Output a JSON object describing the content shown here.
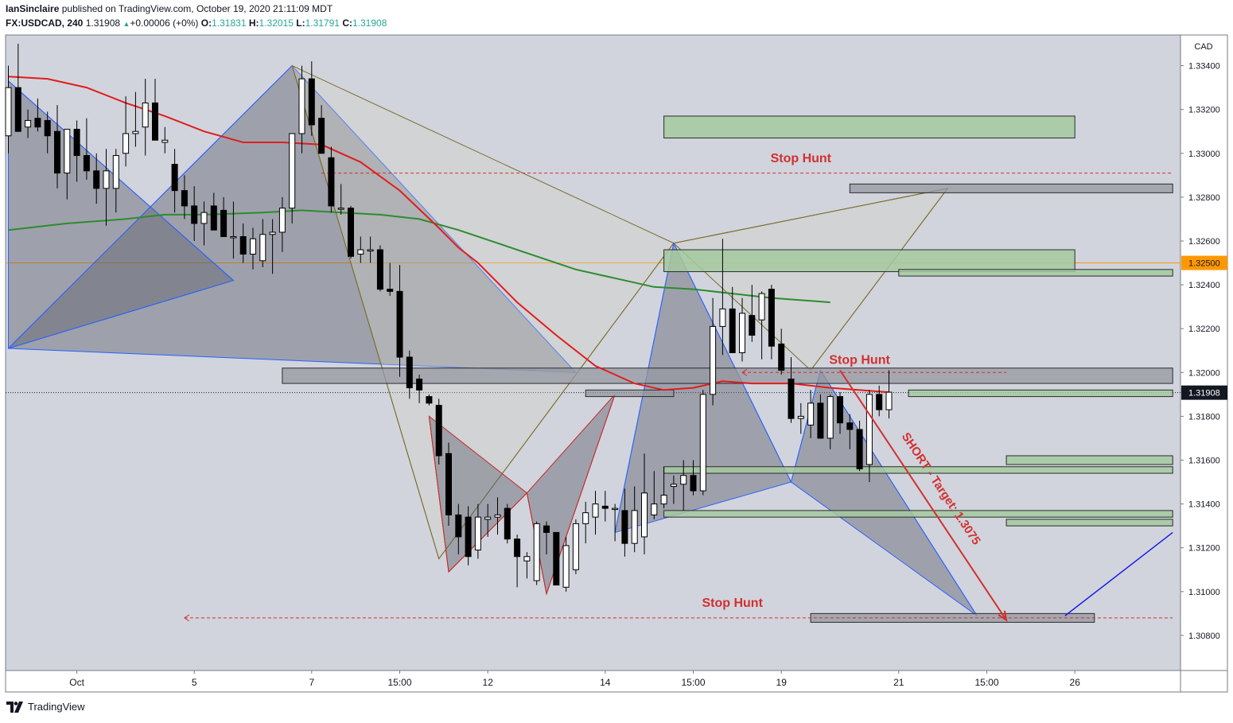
{
  "header": {
    "author": "IanSinclaire",
    "published_text": "published on TradingView.com, October 19, 2020 21:11:09 MDT",
    "symbol": "FX:USDCAD, 240",
    "last": "1.31908",
    "change": "+0.00006 (+0%)",
    "o_label": "O:",
    "o": "1.31831",
    "h_label": "H:",
    "h": "1.32015",
    "l_label": "L:",
    "l": "1.31791",
    "c_label": "C:",
    "c": "1.31908"
  },
  "footer": {
    "brand": "TradingView",
    "icon": "tradingview-logo-icon"
  },
  "colors": {
    "background": "#d1d4dc",
    "bullish_candle": "#ffffff",
    "bearish_candle": "#000000",
    "ma_fast": "#e11d1d",
    "ma_slow": "#2e8b2e",
    "annotation_red": "#d32f2f",
    "harmonic_fill": "#787b86",
    "zone_green": "#a5c9a0",
    "zone_gray": "#9598a1",
    "level_orange": "#ff9800",
    "projection_blue": "#1a1ae6"
  },
  "chart_data": {
    "type": "candlestick",
    "symbol": "USDCAD",
    "timeframe": "240",
    "currency_label": "CAD",
    "ylim": [
      1.3064,
      1.3354
    ],
    "y_ticks": [
      1.334,
      1.332,
      1.33,
      1.328,
      1.326,
      1.324,
      1.322,
      1.32,
      1.318,
      1.316,
      1.314,
      1.312,
      1.31,
      1.308
    ],
    "y_tick_labels": [
      "1.33400",
      "1.33200",
      "1.33000",
      "1.32800",
      "1.32600",
      "1.32400",
      "1.32200",
      "1.32000",
      "1.31800",
      "1.31600",
      "1.31400",
      "1.31200",
      "1.31000",
      "1.30800"
    ],
    "x_tick_labels": [
      {
        "label": "Oct",
        "bar": 7
      },
      {
        "label": "5",
        "bar": 19
      },
      {
        "label": "7",
        "bar": 31
      },
      {
        "label": "15:00",
        "bar": 40
      },
      {
        "label": "12",
        "bar": 49
      },
      {
        "label": "14",
        "bar": 61
      },
      {
        "label": "15:00",
        "bar": 70
      },
      {
        "label": "19",
        "bar": 79
      },
      {
        "label": "21",
        "bar": 91
      },
      {
        "label": "15:00",
        "bar": 100
      },
      {
        "label": "26",
        "bar": 109
      }
    ],
    "price_labels": [
      {
        "value": 1.325,
        "text": "1.32500",
        "style": "orange"
      },
      {
        "value": 1.31908,
        "text": "1.31908",
        "style": "black"
      }
    ],
    "candles": [
      {
        "o": 1.3308,
        "h": 1.334,
        "l": 1.33,
        "c": 1.333
      },
      {
        "o": 1.333,
        "h": 1.335,
        "l": 1.331,
        "c": 1.331
      },
      {
        "o": 1.3312,
        "h": 1.332,
        "l": 1.3307,
        "c": 1.3315
      },
      {
        "o": 1.3316,
        "h": 1.3325,
        "l": 1.331,
        "c": 1.3312
      },
      {
        "o": 1.3315,
        "h": 1.3319,
        "l": 1.33,
        "c": 1.3308
      },
      {
        "o": 1.331,
        "h": 1.3322,
        "l": 1.3284,
        "c": 1.3291
      },
      {
        "o": 1.3291,
        "h": 1.331,
        "l": 1.3279,
        "c": 1.3311
      },
      {
        "o": 1.3311,
        "h": 1.3315,
        "l": 1.3287,
        "c": 1.3299
      },
      {
        "o": 1.3299,
        "h": 1.3316,
        "l": 1.3288,
        "c": 1.3292
      },
      {
        "o": 1.3292,
        "h": 1.33,
        "l": 1.3277,
        "c": 1.3284
      },
      {
        "o": 1.3284,
        "h": 1.3302,
        "l": 1.3267,
        "c": 1.3292
      },
      {
        "o": 1.3284,
        "h": 1.3302,
        "l": 1.3273,
        "c": 1.3299
      },
      {
        "o": 1.33,
        "h": 1.3326,
        "l": 1.3294,
        "c": 1.3309
      },
      {
        "o": 1.3309,
        "h": 1.3328,
        "l": 1.3303,
        "c": 1.331
      },
      {
        "o": 1.3312,
        "h": 1.3334,
        "l": 1.3299,
        "c": 1.3323
      },
      {
        "o": 1.3323,
        "h": 1.3334,
        "l": 1.3306,
        "c": 1.3306
      },
      {
        "o": 1.3305,
        "h": 1.3312,
        "l": 1.33,
        "c": 1.3306
      },
      {
        "o": 1.3295,
        "h": 1.3302,
        "l": 1.3273,
        "c": 1.3283
      },
      {
        "o": 1.3283,
        "h": 1.329,
        "l": 1.327,
        "c": 1.3276
      },
      {
        "o": 1.3276,
        "h": 1.3285,
        "l": 1.326,
        "c": 1.3268
      },
      {
        "o": 1.3268,
        "h": 1.3278,
        "l": 1.3258,
        "c": 1.3273
      },
      {
        "o": 1.3276,
        "h": 1.3282,
        "l": 1.3265,
        "c": 1.3265
      },
      {
        "o": 1.3274,
        "h": 1.328,
        "l": 1.3262,
        "c": 1.3262
      },
      {
        "o": 1.3262,
        "h": 1.3278,
        "l": 1.3252,
        "c": 1.3262
      },
      {
        "o": 1.3262,
        "h": 1.3268,
        "l": 1.325,
        "c": 1.3254
      },
      {
        "o": 1.3254,
        "h": 1.3266,
        "l": 1.3247,
        "c": 1.3261
      },
      {
        "o": 1.3251,
        "h": 1.327,
        "l": 1.3248,
        "c": 1.3263
      },
      {
        "o": 1.3263,
        "h": 1.327,
        "l": 1.3245,
        "c": 1.3264
      },
      {
        "o": 1.3264,
        "h": 1.328,
        "l": 1.3255,
        "c": 1.3275
      },
      {
        "o": 1.3275,
        "h": 1.3308,
        "l": 1.3268,
        "c": 1.3309
      },
      {
        "o": 1.3309,
        "h": 1.334,
        "l": 1.33,
        "c": 1.3334
      },
      {
        "o": 1.3334,
        "h": 1.3342,
        "l": 1.3308,
        "c": 1.3313
      },
      {
        "o": 1.3316,
        "h": 1.3322,
        "l": 1.33,
        "c": 1.33
      },
      {
        "o": 1.3298,
        "h": 1.3303,
        "l": 1.3273,
        "c": 1.3276
      },
      {
        "o": 1.3275,
        "h": 1.3286,
        "l": 1.3272,
        "c": 1.3275
      },
      {
        "o": 1.3275,
        "h": 1.3276,
        "l": 1.3252,
        "c": 1.3253
      },
      {
        "o": 1.3254,
        "h": 1.3262,
        "l": 1.325,
        "c": 1.3256
      },
      {
        "o": 1.3256,
        "h": 1.3262,
        "l": 1.325,
        "c": 1.3256
      },
      {
        "o": 1.3256,
        "h": 1.3258,
        "l": 1.3237,
        "c": 1.3238
      },
      {
        "o": 1.3238,
        "h": 1.325,
        "l": 1.3235,
        "c": 1.3237
      },
      {
        "o": 1.3237,
        "h": 1.3249,
        "l": 1.3198,
        "c": 1.3207
      },
      {
        "o": 1.3207,
        "h": 1.321,
        "l": 1.3188,
        "c": 1.3193
      },
      {
        "o": 1.3197,
        "h": 1.3199,
        "l": 1.3186,
        "c": 1.3192
      },
      {
        "o": 1.3189,
        "h": 1.319,
        "l": 1.3185,
        "c": 1.3186
      },
      {
        "o": 1.3185,
        "h": 1.3188,
        "l": 1.3158,
        "c": 1.3162
      },
      {
        "o": 1.3163,
        "h": 1.3168,
        "l": 1.313,
        "c": 1.3135
      },
      {
        "o": 1.3135,
        "h": 1.314,
        "l": 1.3117,
        "c": 1.3125
      },
      {
        "o": 1.3134,
        "h": 1.3139,
        "l": 1.3112,
        "c": 1.3116
      },
      {
        "o": 1.3119,
        "h": 1.314,
        "l": 1.3115,
        "c": 1.3134
      },
      {
        "o": 1.3133,
        "h": 1.314,
        "l": 1.3125,
        "c": 1.3134
      },
      {
        "o": 1.3134,
        "h": 1.3143,
        "l": 1.3126,
        "c": 1.3135
      },
      {
        "o": 1.3138,
        "h": 1.314,
        "l": 1.3122,
        "c": 1.3124
      },
      {
        "o": 1.3124,
        "h": 1.3126,
        "l": 1.3102,
        "c": 1.3116
      },
      {
        "o": 1.3114,
        "h": 1.3118,
        "l": 1.3106,
        "c": 1.3116
      },
      {
        "o": 1.3105,
        "h": 1.3132,
        "l": 1.3103,
        "c": 1.3131
      },
      {
        "o": 1.313,
        "h": 1.3132,
        "l": 1.3117,
        "c": 1.3127
      },
      {
        "o": 1.3127,
        "h": 1.3127,
        "l": 1.3103,
        "c": 1.3103
      },
      {
        "o": 1.3102,
        "h": 1.3125,
        "l": 1.31,
        "c": 1.3121
      },
      {
        "o": 1.311,
        "h": 1.3133,
        "l": 1.3108,
        "c": 1.3131
      },
      {
        "o": 1.3131,
        "h": 1.3141,
        "l": 1.3122,
        "c": 1.3136
      },
      {
        "o": 1.3134,
        "h": 1.3146,
        "l": 1.3126,
        "c": 1.314
      },
      {
        "o": 1.3139,
        "h": 1.3146,
        "l": 1.3132,
        "c": 1.3138
      },
      {
        "o": 1.3138,
        "h": 1.314,
        "l": 1.3123,
        "c": 1.3138
      },
      {
        "o": 1.3137,
        "h": 1.3147,
        "l": 1.3116,
        "c": 1.3122
      },
      {
        "o": 1.3122,
        "h": 1.3148,
        "l": 1.3118,
        "c": 1.3137
      },
      {
        "o": 1.3125,
        "h": 1.3163,
        "l": 1.3117,
        "c": 1.3145
      },
      {
        "o": 1.3135,
        "h": 1.3155,
        "l": 1.3133,
        "c": 1.314
      },
      {
        "o": 1.314,
        "h": 1.3157,
        "l": 1.3138,
        "c": 1.3144
      },
      {
        "o": 1.3148,
        "h": 1.3153,
        "l": 1.314,
        "c": 1.3149
      },
      {
        "o": 1.3149,
        "h": 1.316,
        "l": 1.3137,
        "c": 1.3153
      },
      {
        "o": 1.3153,
        "h": 1.316,
        "l": 1.3144,
        "c": 1.3146
      },
      {
        "o": 1.3146,
        "h": 1.3192,
        "l": 1.3144,
        "c": 1.319
      },
      {
        "o": 1.319,
        "h": 1.3234,
        "l": 1.3185,
        "c": 1.3221
      },
      {
        "o": 1.3221,
        "h": 1.3261,
        "l": 1.3208,
        "c": 1.3229
      },
      {
        "o": 1.3229,
        "h": 1.3239,
        "l": 1.321,
        "c": 1.3209
      },
      {
        "o": 1.3209,
        "h": 1.3234,
        "l": 1.3205,
        "c": 1.3227
      },
      {
        "o": 1.3226,
        "h": 1.324,
        "l": 1.3214,
        "c": 1.3217
      },
      {
        "o": 1.3224,
        "h": 1.3237,
        "l": 1.3206,
        "c": 1.3236
      },
      {
        "o": 1.3238,
        "h": 1.324,
        "l": 1.3206,
        "c": 1.3212
      },
      {
        "o": 1.3213,
        "h": 1.322,
        "l": 1.3199,
        "c": 1.3201
      },
      {
        "o": 1.3197,
        "h": 1.3207,
        "l": 1.3177,
        "c": 1.3179
      },
      {
        "o": 1.3179,
        "h": 1.3186,
        "l": 1.3172,
        "c": 1.318
      },
      {
        "o": 1.3176,
        "h": 1.3192,
        "l": 1.317,
        "c": 1.3186
      },
      {
        "o": 1.3186,
        "h": 1.319,
        "l": 1.317,
        "c": 1.317
      },
      {
        "o": 1.317,
        "h": 1.319,
        "l": 1.3165,
        "c": 1.3189
      },
      {
        "o": 1.3189,
        "h": 1.3191,
        "l": 1.3172,
        "c": 1.3177
      },
      {
        "o": 1.3177,
        "h": 1.3181,
        "l": 1.3165,
        "c": 1.3174
      },
      {
        "o": 1.3174,
        "h": 1.3178,
        "l": 1.3155,
        "c": 1.3156
      },
      {
        "o": 1.3158,
        "h": 1.3192,
        "l": 1.315,
        "c": 1.319
      },
      {
        "o": 1.319,
        "h": 1.3194,
        "l": 1.318,
        "c": 1.3183
      },
      {
        "o": 1.3183,
        "h": 1.3201,
        "l": 1.3179,
        "c": 1.3191
      }
    ],
    "ma_fast": [
      [
        0,
        1.3335
      ],
      [
        4,
        1.3334
      ],
      [
        8,
        1.333
      ],
      [
        12,
        1.3323
      ],
      [
        16,
        1.3317
      ],
      [
        20,
        1.331
      ],
      [
        24,
        1.3305
      ],
      [
        28,
        1.3305
      ],
      [
        32,
        1.3304
      ],
      [
        36,
        1.3296
      ],
      [
        40,
        1.3283
      ],
      [
        44,
        1.3266
      ],
      [
        46,
        1.3257
      ],
      [
        48,
        1.325
      ],
      [
        52,
        1.3232
      ],
      [
        56,
        1.3217
      ],
      [
        60,
        1.3203
      ],
      [
        64,
        1.3195
      ],
      [
        67,
        1.3192
      ],
      [
        70,
        1.3193
      ],
      [
        73,
        1.3196
      ],
      [
        76,
        1.3195
      ],
      [
        80,
        1.3195
      ],
      [
        84,
        1.3193
      ],
      [
        90,
        1.3191
      ]
    ],
    "ma_slow": [
      [
        0,
        1.3265
      ],
      [
        6,
        1.3268
      ],
      [
        12,
        1.327
      ],
      [
        16,
        1.3272
      ],
      [
        20,
        1.3272
      ],
      [
        26,
        1.3273
      ],
      [
        30,
        1.3274
      ],
      [
        34,
        1.3273
      ],
      [
        38,
        1.3272
      ],
      [
        42,
        1.327
      ],
      [
        46,
        1.3265
      ],
      [
        50,
        1.3259
      ],
      [
        54,
        1.3253
      ],
      [
        58,
        1.3247
      ],
      [
        62,
        1.3243
      ],
      [
        66,
        1.3239
      ],
      [
        70,
        1.3238
      ],
      [
        74,
        1.3236
      ],
      [
        78,
        1.3234
      ],
      [
        84,
        1.3232
      ]
    ],
    "ohlc_readout": {
      "open": 1.31831,
      "high": 1.32015,
      "low": 1.31791,
      "close": 1.31908
    },
    "last_price": 1.31908,
    "horizontal_levels": [
      {
        "value": 1.325,
        "style": "solid-orange"
      },
      {
        "value": 1.31908,
        "style": "dotted-black"
      }
    ],
    "zones": [
      {
        "x1": 67,
        "x2": 109,
        "y1": 1.3307,
        "y2": 1.3317,
        "color": "green"
      },
      {
        "x1": 86,
        "x2": 119,
        "y1": 1.3282,
        "y2": 1.3286,
        "color": "gray"
      },
      {
        "x1": 67,
        "x2": 109,
        "y1": 1.3246,
        "y2": 1.3256,
        "color": "green"
      },
      {
        "x1": 91,
        "x2": 119,
        "y1": 1.3244,
        "y2": 1.3247,
        "color": "green"
      },
      {
        "x1": 28,
        "x2": 119,
        "y1": 1.3195,
        "y2": 1.3202,
        "color": "gray"
      },
      {
        "x1": 59,
        "x2": 68,
        "y1": 1.3189,
        "y2": 1.3192,
        "color": "gray"
      },
      {
        "x1": 92,
        "x2": 119,
        "y1": 1.3189,
        "y2": 1.3192,
        "color": "green"
      },
      {
        "x1": 102,
        "x2": 119,
        "y1": 1.3158,
        "y2": 1.3162,
        "color": "green"
      },
      {
        "x1": 67,
        "x2": 119,
        "y1": 1.3154,
        "y2": 1.3157,
        "color": "green"
      },
      {
        "x1": 67,
        "x2": 119,
        "y1": 1.3134,
        "y2": 1.3137,
        "color": "green"
      },
      {
        "x1": 102,
        "x2": 119,
        "y1": 1.313,
        "y2": 1.3133,
        "color": "green"
      },
      {
        "x1": 82,
        "x2": 111,
        "y1": 1.3086,
        "y2": 1.309,
        "color": "gray"
      }
    ],
    "dashed_levels": [
      {
        "x1": 32,
        "x2": 119,
        "value": 1.3291
      },
      {
        "x1": 75,
        "x2": 102,
        "value": 1.32,
        "arrow_left": true
      },
      {
        "x1": 18,
        "x2": 119,
        "value": 1.3088,
        "arrow_left": true
      }
    ],
    "harmonic_patterns": [
      {
        "id": "bat-left",
        "color": "blue",
        "points": [
          [
            0,
            1.3333
          ],
          [
            23,
            1.3242
          ],
          [
            0,
            1.3211
          ],
          [
            29,
            1.334
          ],
          [
            58,
            1.32
          ],
          [
            23,
            1.3242
          ]
        ]
      },
      {
        "id": "xabcd-olive",
        "color": "olive",
        "points": [
          [
            29,
            1.334
          ],
          [
            44,
            1.3115
          ],
          [
            68,
            1.3259
          ],
          [
            96,
            1.3284
          ],
          [
            82,
            1.3201
          ],
          [
            68,
            1.3259
          ]
        ]
      },
      {
        "id": "small-red",
        "color": "red",
        "points": [
          [
            43,
            1.318
          ],
          [
            45,
            1.3109
          ],
          [
            53,
            1.3145
          ],
          [
            55,
            1.3099
          ],
          [
            62,
            1.319
          ],
          [
            55,
            1.3099
          ]
        ]
      },
      {
        "id": "right-shark",
        "color": "blue",
        "points": [
          [
            62,
            1.3127
          ],
          [
            68,
            1.3259
          ],
          [
            80,
            1.315
          ],
          [
            83,
            1.3201
          ],
          [
            99,
            1.3089
          ],
          [
            80,
            1.315
          ]
        ]
      }
    ],
    "projection": {
      "from": [
        85,
        1.3201
      ],
      "to": [
        102,
        1.3087
      ],
      "continuation": [
        [
          108,
          1.3089
        ],
        [
          119,
          1.3127
        ]
      ]
    },
    "annotations": [
      {
        "text": "Stop Hunt",
        "bar": 81,
        "value": 1.3296
      },
      {
        "text": "Stop Hunt",
        "bar": 87,
        "value": 1.3204
      },
      {
        "text": "Stop Hunt",
        "bar": 74,
        "value": 1.3093
      },
      {
        "text": "SHORT - Target: 1.3075",
        "bar": 95,
        "value": 1.3146,
        "rotate": true
      }
    ]
  }
}
